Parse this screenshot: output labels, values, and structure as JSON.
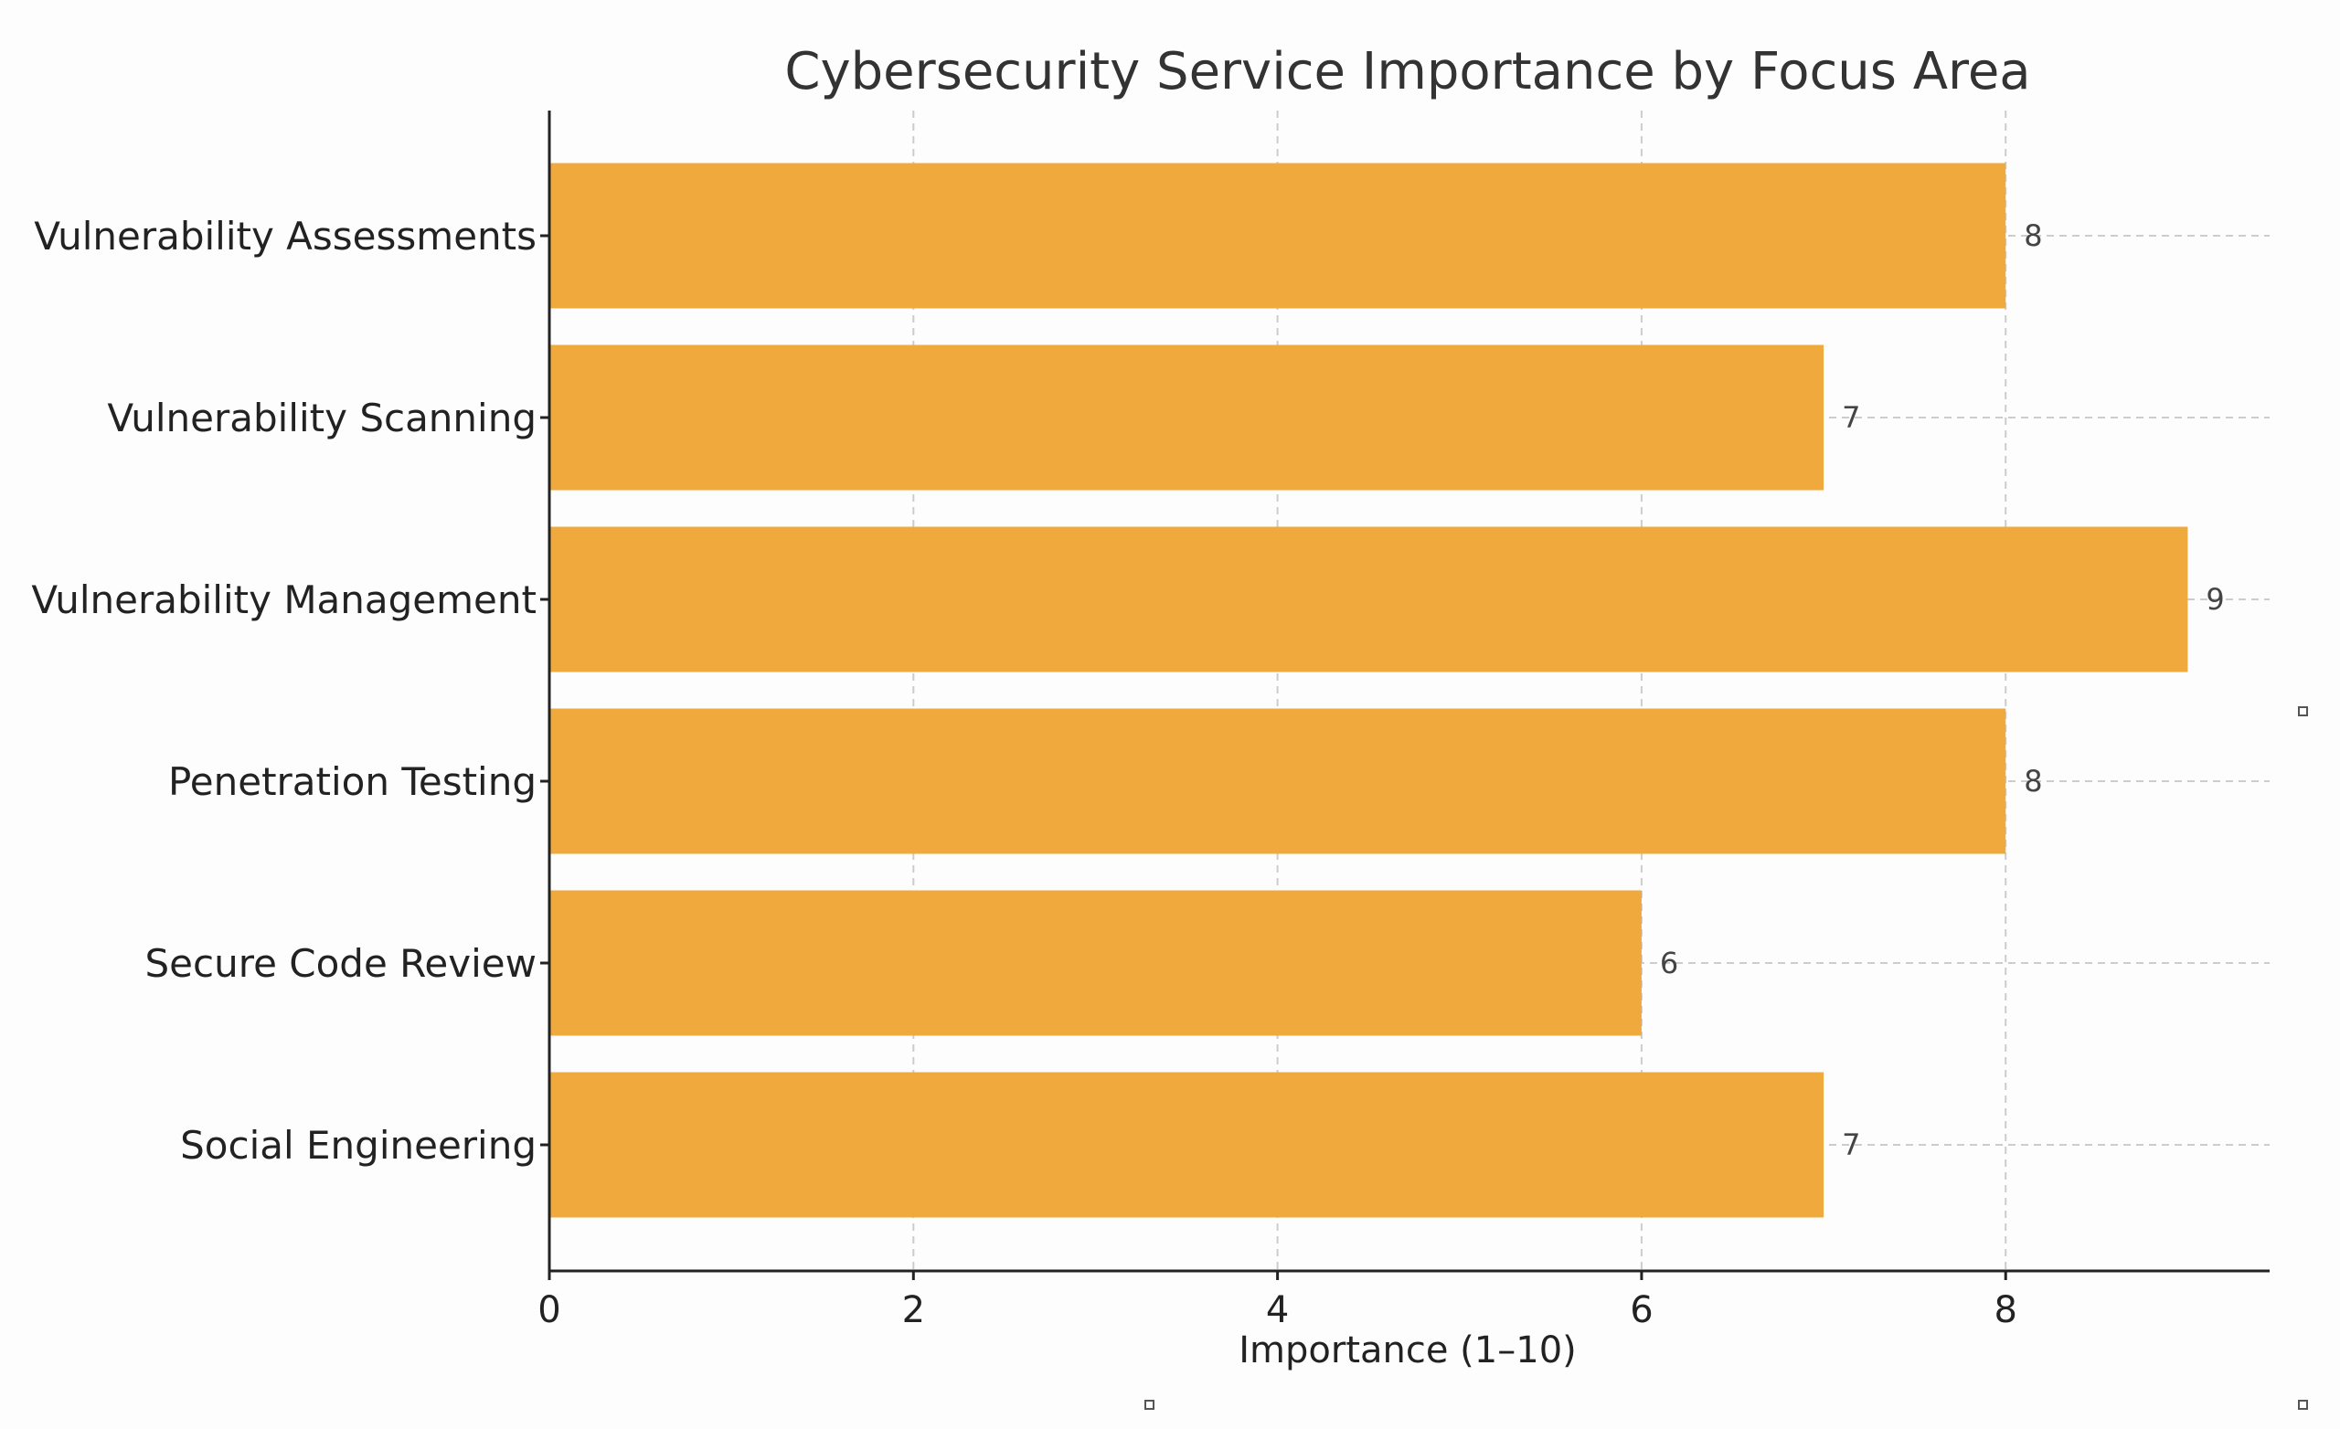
{
  "chart_data": {
    "type": "bar",
    "orientation": "horizontal",
    "title": "Cybersecurity Service Importance by Focus Area",
    "xlabel": "Importance (1–10)",
    "ylabel": "",
    "categories": [
      "Vulnerability Assessments",
      "Vulnerability Scanning",
      "Vulnerability Management",
      "Penetration Testing",
      "Secure Code Review",
      "Social Engineering"
    ],
    "values": [
      8,
      7,
      9,
      8,
      6,
      7
    ],
    "value_labels": [
      "8",
      "7",
      "9",
      "8",
      "6",
      "7"
    ],
    "xlim": [
      0,
      9.45
    ],
    "xticks": [
      0,
      2,
      4,
      6,
      8
    ],
    "xtick_labels": [
      "0",
      "2",
      "4",
      "6",
      "8"
    ],
    "grid": true,
    "bar_color": "#F0A93D"
  }
}
